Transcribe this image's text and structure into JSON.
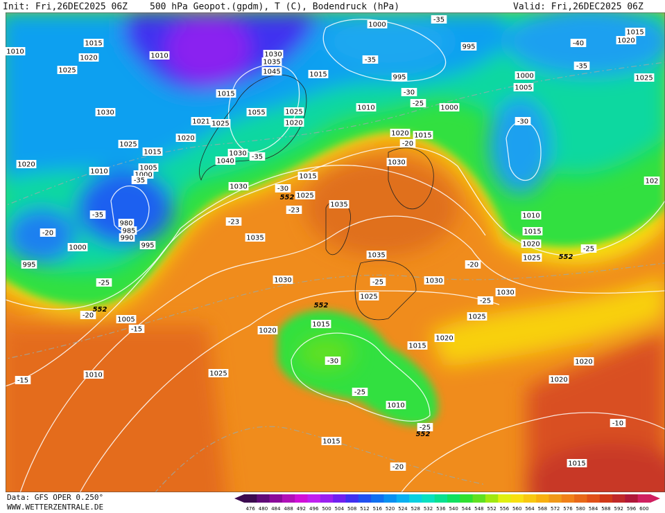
{
  "header": {
    "init": "Init: Fri,26DEC2025 06Z",
    "title": "500 hPa Geopot.(gpdm), T (C), Bodendruck (hPa)",
    "valid": "Valid: Fri,26DEC2025 06Z"
  },
  "footer": {
    "data": "Data: GFS OPER 0.250°",
    "site": "WWW.WETTERZENTRALE.DE"
  },
  "scale": {
    "values": [
      476,
      480,
      484,
      488,
      492,
      496,
      500,
      504,
      508,
      512,
      516,
      520,
      524,
      528,
      532,
      536,
      540,
      544,
      548,
      552,
      556,
      560,
      564,
      568,
      572,
      576,
      580,
      584,
      588,
      592,
      596,
      600
    ],
    "colors": [
      "#3c0a50",
      "#600a78",
      "#8a0a9a",
      "#b010b8",
      "#d010d8",
      "#c020f0",
      "#9a20f0",
      "#7020f0",
      "#4030f0",
      "#2050f0",
      "#1070f0",
      "#0890f0",
      "#08b0f0",
      "#08d0e0",
      "#08e0c0",
      "#08e090",
      "#10e060",
      "#30e030",
      "#60e020",
      "#a0e810",
      "#e0f010",
      "#f8e010",
      "#f8c810",
      "#f8b010",
      "#f09818",
      "#f08018",
      "#e86818",
      "#e05018",
      "#d03818",
      "#c02828",
      "#b01838",
      "#d02060"
    ]
  },
  "pressure_labels": [
    1015,
    1010,
    1020,
    1025,
    1010,
    1030,
    1025,
    1015,
    1020,
    1020,
    1010,
    1005,
    1000,
    980,
    985,
    990,
    995,
    1000,
    995,
    1030,
    1035,
    1045,
    1015,
    1055,
    1025,
    1020,
    1030,
    1040,
    1030,
    1015,
    1025,
    1035,
    1035,
    1035,
    1030,
    1030,
    1025,
    1015,
    1020,
    1005,
    1010,
    1025,
    1015,
    1020,
    1010,
    1015,
    1000,
    995,
    995,
    1010,
    1000,
    1000,
    1005,
    1020,
    1015,
    1030,
    1010,
    1015,
    1020,
    1025,
    1030,
    1025,
    1020,
    1020,
    1015,
    1015,
    1020,
    1025,
    102,
    1015,
    1021,
    1025
  ],
  "temperature_labels": [
    -35,
    -40,
    -35,
    -35,
    -30,
    -25,
    -20,
    -30,
    -35,
    -30,
    -23,
    -23,
    -35,
    -20,
    -25,
    -20,
    -15,
    -15,
    -30,
    -25,
    -25,
    -20,
    -10,
    -20,
    -25,
    -25,
    -25,
    -35
  ],
  "height_labels": [
    552,
    552,
    552,
    552,
    552
  ]
}
